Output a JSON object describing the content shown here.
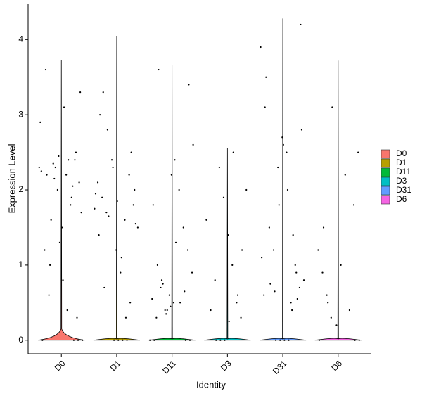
{
  "chart_data": {
    "type": "violin",
    "x_label": "Identity",
    "y_label": "Expression Level",
    "categories": [
      "D0",
      "D1",
      "D11",
      "D3",
      "D31",
      "D6"
    ],
    "ylim": [
      -0.18,
      4.48
    ],
    "yticks": [
      0,
      1,
      2,
      3,
      4
    ],
    "legend_position": "right",
    "series": [
      {
        "name": "D0",
        "color": "#F8766D",
        "max": 3.73,
        "points": [
          2.3,
          2.1,
          2.4,
          1.8,
          2.2,
          1.5,
          2.0,
          2.35,
          0.6,
          1.2,
          2.9,
          3.3,
          2.5,
          1.9,
          0.4,
          0.8,
          2.45,
          2.15,
          1.0,
          3.6,
          2.25,
          1.7,
          0.3,
          2.05,
          2.4,
          3.1,
          1.3,
          2.3,
          1.6,
          2.2,
          0,
          0,
          0,
          0
        ]
      },
      {
        "name": "D1",
        "color": "#B79F00",
        "max": 4.05,
        "points": [
          1.7,
          1.9,
          2.1,
          1.5,
          1.8,
          2.2,
          1.6,
          0.9,
          1.2,
          2.4,
          2.8,
          3.3,
          1.4,
          1.75,
          2.0,
          0.5,
          0.3,
          1.1,
          1.85,
          2.3,
          1.65,
          0.7,
          3.0,
          1.95,
          1.55,
          2.5,
          0,
          0,
          0,
          0
        ]
      },
      {
        "name": "D11",
        "color": "#00BA38",
        "max": 3.66,
        "points": [
          0.5,
          0.6,
          0.4,
          0.7,
          0.3,
          0.55,
          0.9,
          1.2,
          1.5,
          2.0,
          2.4,
          0.45,
          0.35,
          0.8,
          1.0,
          1.8,
          2.6,
          3.4,
          0.65,
          0.5,
          1.3,
          2.2,
          0.4,
          0.75,
          3.6,
          0,
          0,
          0,
          0
        ]
      },
      {
        "name": "D3",
        "color": "#00BFC4",
        "max": 2.56,
        "points": [
          0.3,
          0.5,
          1.0,
          1.4,
          1.9,
          2.3,
          0.8,
          0.4,
          1.6,
          2.0,
          1.2,
          0.6,
          2.5,
          0.25,
          0,
          0,
          0
        ]
      },
      {
        "name": "D31",
        "color": "#619CFF",
        "max": 4.28,
        "points": [
          0.6,
          0.8,
          0.7,
          1.0,
          0.5,
          2.5,
          2.7,
          2.3,
          1.2,
          1.5,
          3.1,
          3.9,
          4.2,
          0.9,
          0.4,
          2.0,
          2.6,
          1.8,
          0.65,
          0.75,
          3.5,
          1.1,
          2.8,
          0.55,
          1.4,
          0,
          0,
          0,
          0
        ]
      },
      {
        "name": "D6",
        "color": "#F564E3",
        "max": 3.72,
        "points": [
          0.3,
          0.6,
          0.9,
          1.2,
          2.5,
          1.8,
          0.4,
          2.2,
          1.0,
          0.2,
          3.1,
          0.5,
          1.5,
          0,
          0,
          0
        ]
      }
    ]
  }
}
